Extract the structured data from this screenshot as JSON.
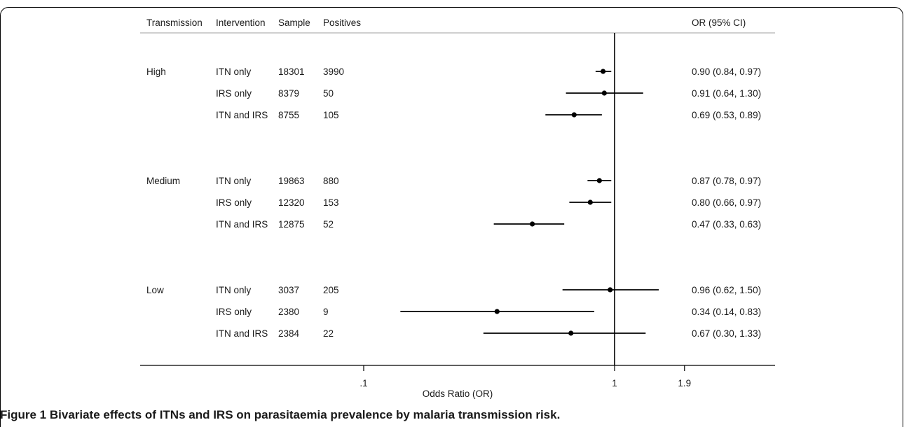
{
  "caption": {
    "label": "Figure 1",
    "text": "Bivariate effects of ITNs and IRS on parasitaemia prevalence by malaria transmission risk."
  },
  "chart_data": {
    "type": "forest",
    "headers": {
      "transmission": "Transmission",
      "intervention": "Intervention",
      "sample": "Sample",
      "positives": "Positives",
      "or": "OR (95% CI)"
    },
    "groups": [
      "High",
      "Medium",
      "Low"
    ],
    "rows": [
      {
        "transmission": "High",
        "intervention": "ITN only",
        "sample": "18301",
        "positives": "3990",
        "or": 0.9,
        "lo": 0.84,
        "hi": 0.97,
        "or_text": "0.90 (0.84, 0.97)"
      },
      {
        "transmission": "",
        "intervention": "IRS only",
        "sample": "8379",
        "positives": "50",
        "or": 0.91,
        "lo": 0.64,
        "hi": 1.3,
        "or_text": "0.91 (0.64, 1.30)"
      },
      {
        "transmission": "",
        "intervention": "ITN and IRS",
        "sample": "8755",
        "positives": "105",
        "or": 0.69,
        "lo": 0.53,
        "hi": 0.89,
        "or_text": "0.69 (0.53, 0.89)"
      },
      {
        "transmission": "Medium",
        "intervention": "ITN only",
        "sample": "19863",
        "positives": "880",
        "or": 0.87,
        "lo": 0.78,
        "hi": 0.97,
        "or_text": "0.87 (0.78, 0.97)"
      },
      {
        "transmission": "",
        "intervention": "IRS only",
        "sample": "12320",
        "positives": "153",
        "or": 0.8,
        "lo": 0.66,
        "hi": 0.97,
        "or_text": "0.80 (0.66, 0.97)"
      },
      {
        "transmission": "",
        "intervention": "ITN and IRS",
        "sample": "12875",
        "positives": "52",
        "or": 0.47,
        "lo": 0.33,
        "hi": 0.63,
        "or_text": "0.47 (0.33, 0.63)"
      },
      {
        "transmission": "Low",
        "intervention": "ITN only",
        "sample": "3037",
        "positives": "205",
        "or": 0.96,
        "lo": 0.62,
        "hi": 1.5,
        "or_text": "0.96 (0.62, 1.50)"
      },
      {
        "transmission": "",
        "intervention": "IRS only",
        "sample": "2380",
        "positives": "9",
        "or": 0.34,
        "lo": 0.14,
        "hi": 0.83,
        "or_text": "0.34 (0.14, 0.83)"
      },
      {
        "transmission": "",
        "intervention": "ITN and IRS",
        "sample": "2384",
        "positives": "22",
        "or": 0.67,
        "lo": 0.3,
        "hi": 1.33,
        "or_text": "0.67 (0.30, 1.33)"
      }
    ],
    "xscale": "log",
    "xticks": [
      0.1,
      1,
      1.9
    ],
    "xtick_labels": [
      ".1",
      "1",
      "1.9"
    ],
    "reference_line": 1,
    "xlabel": "Odds Ratio (OR)",
    "title": "",
    "grid": false,
    "legend": "none"
  }
}
